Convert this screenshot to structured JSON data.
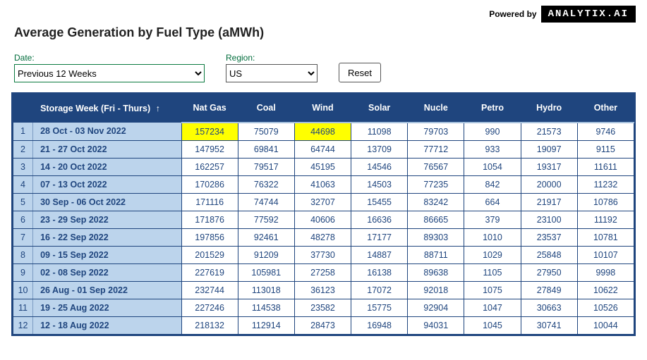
{
  "header": {
    "powered_by_label": "Powered by",
    "logo_text": "ANALYTIX.AI",
    "title": "Average Generation by Fuel Type (aMWh)"
  },
  "filters": {
    "date_label": "Date:",
    "date_value": "Previous 12 Weeks",
    "region_label": "Region:",
    "region_value": "US",
    "reset_label": "Reset"
  },
  "table": {
    "row_header": "Storage Week (Fri - Thurs)",
    "sort_indicator": "↑",
    "columns": [
      "Nat Gas",
      "Coal",
      "Wind",
      "Solar",
      "Nucle",
      "Petro",
      "Hydro",
      "Other"
    ],
    "highlight_bg": "#FFFF00",
    "rows": [
      {
        "idx": "1",
        "week": "28 Oct - 03 Nov 2022",
        "vals": [
          "157234",
          "75079",
          "44698",
          "11098",
          "79703",
          "990",
          "21573",
          "9746"
        ],
        "hl": [
          0,
          2
        ]
      },
      {
        "idx": "2",
        "week": "21 - 27 Oct 2022",
        "vals": [
          "147952",
          "69841",
          "64744",
          "13709",
          "77712",
          "933",
          "19097",
          "9115"
        ],
        "hl": []
      },
      {
        "idx": "3",
        "week": "14 - 20 Oct 2022",
        "vals": [
          "162257",
          "79517",
          "45195",
          "14546",
          "76567",
          "1054",
          "19317",
          "11611"
        ],
        "hl": []
      },
      {
        "idx": "4",
        "week": "07 - 13 Oct 2022",
        "vals": [
          "170286",
          "76322",
          "41063",
          "14503",
          "77235",
          "842",
          "20000",
          "11232"
        ],
        "hl": []
      },
      {
        "idx": "5",
        "week": "30 Sep - 06 Oct 2022",
        "vals": [
          "171116",
          "74744",
          "32707",
          "15455",
          "83242",
          "664",
          "21917",
          "10786"
        ],
        "hl": []
      },
      {
        "idx": "6",
        "week": "23 - 29 Sep 2022",
        "vals": [
          "171876",
          "77592",
          "40606",
          "16636",
          "86665",
          "379",
          "23100",
          "11192"
        ],
        "hl": []
      },
      {
        "idx": "7",
        "week": "16 - 22 Sep 2022",
        "vals": [
          "197856",
          "92461",
          "48278",
          "17177",
          "89303",
          "1010",
          "23537",
          "10781"
        ],
        "hl": []
      },
      {
        "idx": "8",
        "week": "09 - 15 Sep 2022",
        "vals": [
          "201529",
          "91209",
          "37730",
          "14887",
          "88711",
          "1029",
          "25848",
          "10107"
        ],
        "hl": []
      },
      {
        "idx": "9",
        "week": "02 - 08 Sep 2022",
        "vals": [
          "227619",
          "105981",
          "27258",
          "16138",
          "89638",
          "1105",
          "27950",
          "9998"
        ],
        "hl": []
      },
      {
        "idx": "10",
        "week": "26 Aug - 01 Sep 2022",
        "vals": [
          "232744",
          "113018",
          "36123",
          "17072",
          "92018",
          "1075",
          "27849",
          "10622"
        ],
        "hl": []
      },
      {
        "idx": "11",
        "week": "19 - 25 Aug 2022",
        "vals": [
          "227246",
          "114538",
          "23582",
          "15775",
          "92904",
          "1047",
          "30663",
          "10526"
        ],
        "hl": []
      },
      {
        "idx": "12",
        "week": "12 - 18 Aug 2022",
        "vals": [
          "218132",
          "112914",
          "28473",
          "16948",
          "94031",
          "1045",
          "30741",
          "10044"
        ],
        "hl": []
      }
    ]
  }
}
